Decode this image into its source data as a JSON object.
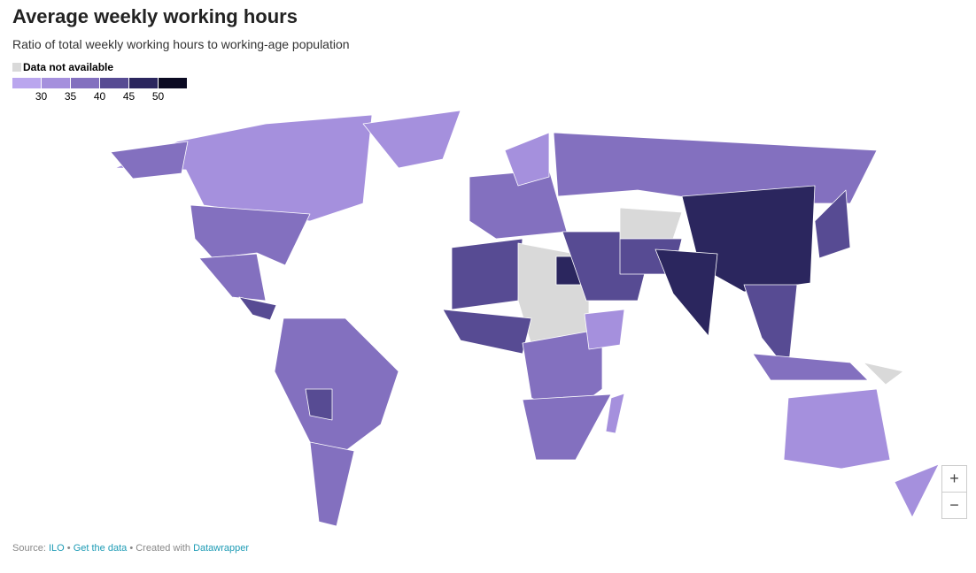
{
  "header": {
    "title": "Average weekly working hours",
    "subtitle": "Ratio of total weekly working hours to working-age population"
  },
  "legend": {
    "na_label": "Data not available",
    "na_color": "#d9d9d9",
    "colors": [
      "#baa6ee",
      "#a590dd",
      "#8370bf",
      "#574b93",
      "#2b265e",
      "#0b0a22"
    ],
    "thresholds": [
      30,
      35,
      40,
      45,
      50
    ]
  },
  "map": {
    "regions": [
      {
        "value": 33
      },
      {
        "value": 38
      },
      {
        "value": 38
      },
      {
        "value": 33
      },
      {
        "value": 39
      },
      {
        "value": 43
      },
      {
        "value": 39
      },
      {
        "value": 37
      },
      {
        "value": 42
      },
      {
        "value": 36
      },
      {
        "value": 33
      },
      {
        "value": 38
      },
      {
        "value": 42
      },
      {
        "value": null
      },
      {
        "value": 47
      },
      {
        "value": 41
      },
      {
        "value": 38
      },
      {
        "value": 31
      },
      {
        "value": 39
      },
      {
        "value": 42
      },
      {
        "value": null
      },
      {
        "value": 41
      },
      {
        "value": 48
      },
      {
        "value": 47
      },
      {
        "value": 44
      },
      {
        "value": 38
      },
      {
        "value": 41
      },
      {
        "value": 33
      },
      {
        "value": 31
      },
      {
        "value": 30
      },
      {
        "value": null
      }
    ]
  },
  "footer": {
    "source_label": "Source:",
    "source": "ILO",
    "separator": "•",
    "get_data": "Get the data",
    "created": "Created with",
    "tool": "Datawrapper"
  },
  "controls": {
    "zoom_in": "+",
    "zoom_out": "−"
  }
}
